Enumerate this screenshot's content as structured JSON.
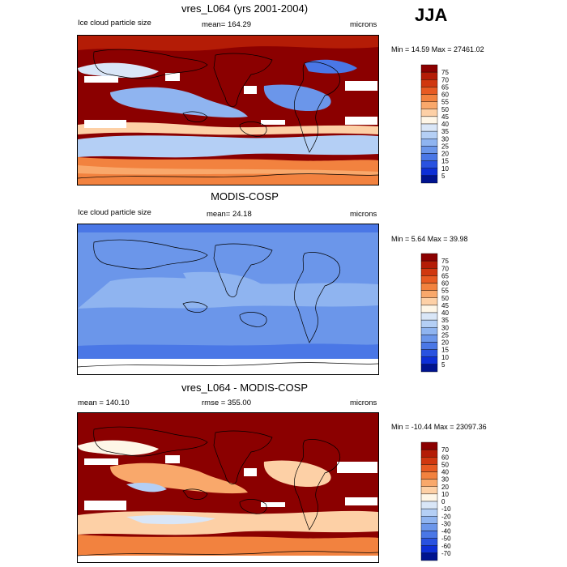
{
  "season": "JJA",
  "panels": [
    {
      "title": "vres_L064 (yrs 2001-2004)",
      "left_label": "Ice cloud particle size",
      "center_label": "mean= 164.29",
      "right_label": "microns",
      "minmax": "Min =  14.59 Max = 27461.02",
      "colorbar_labels": [
        "75",
        "70",
        "65",
        "60",
        "55",
        "50",
        "45",
        "40",
        "35",
        "30",
        "25",
        "20",
        "15",
        "10",
        "5"
      ],
      "colors": [
        "#8b0000",
        "#b41c06",
        "#d0370f",
        "#e75a22",
        "#f2823f",
        "#f9a86b",
        "#fdd0a6",
        "#fef6e7",
        "#d9e6f7",
        "#b4cff5",
        "#8fb4f0",
        "#6b96ea",
        "#4a77e6",
        "#2952e0",
        "#0d2fd6",
        "#00138f"
      ]
    },
    {
      "title": "MODIS-COSP",
      "left_label": "Ice cloud particle size",
      "center_label": "mean=  24.18",
      "right_label": "microns",
      "minmax": "Min =   5.64 Max =  39.98",
      "colorbar_labels": [
        "75",
        "70",
        "65",
        "60",
        "55",
        "50",
        "45",
        "40",
        "35",
        "30",
        "25",
        "20",
        "15",
        "10",
        "5"
      ],
      "colors": [
        "#8b0000",
        "#b41c06",
        "#d0370f",
        "#e75a22",
        "#f2823f",
        "#f9a86b",
        "#fdd0a6",
        "#fef6e7",
        "#d9e6f7",
        "#b4cff5",
        "#8fb4f0",
        "#6b96ea",
        "#4a77e6",
        "#2952e0",
        "#0d2fd6",
        "#00138f"
      ]
    },
    {
      "title": "vres_L064 - MODIS-COSP",
      "left_label": "mean = 140.10",
      "center_label": "rmse = 355.00",
      "right_label": "microns",
      "minmax": "Min = -10.44 Max = 23097.36",
      "colorbar_labels": [
        "70",
        "60",
        "50",
        "40",
        "30",
        "20",
        "10",
        "0",
        "-10",
        "-20",
        "-30",
        "-40",
        "-50",
        "-60",
        "-70"
      ],
      "colors": [
        "#8b0000",
        "#b41c06",
        "#d0370f",
        "#e75a22",
        "#f2823f",
        "#f9a86b",
        "#fdd0a6",
        "#fef6e7",
        "#d9e6f7",
        "#b4cff5",
        "#8fb4f0",
        "#6b96ea",
        "#4a77e6",
        "#2952e0",
        "#0d2fd6",
        "#00138f"
      ]
    }
  ],
  "chart_data": [
    {
      "type": "heatmap",
      "title": "vres_L064 (yrs 2001-2004)",
      "variable": "Ice cloud particle size",
      "units": "microns",
      "mean": 164.29,
      "min": 14.59,
      "max": 27461.02,
      "levels": [
        5,
        10,
        15,
        20,
        25,
        30,
        35,
        40,
        45,
        50,
        55,
        60,
        65,
        70,
        75
      ]
    },
    {
      "type": "heatmap",
      "title": "MODIS-COSP",
      "variable": "Ice cloud particle size",
      "units": "microns",
      "mean": 24.18,
      "min": 5.64,
      "max": 39.98,
      "levels": [
        5,
        10,
        15,
        20,
        25,
        30,
        35,
        40,
        45,
        50,
        55,
        60,
        65,
        70,
        75
      ]
    },
    {
      "type": "heatmap",
      "title": "vres_L064 - MODIS-COSP",
      "units": "microns",
      "mean": 140.1,
      "rmse": 355.0,
      "min": -10.44,
      "max": 23097.36,
      "levels": [
        -70,
        -60,
        -50,
        -40,
        -30,
        -20,
        -10,
        0,
        10,
        20,
        30,
        40,
        50,
        60,
        70
      ]
    }
  ]
}
